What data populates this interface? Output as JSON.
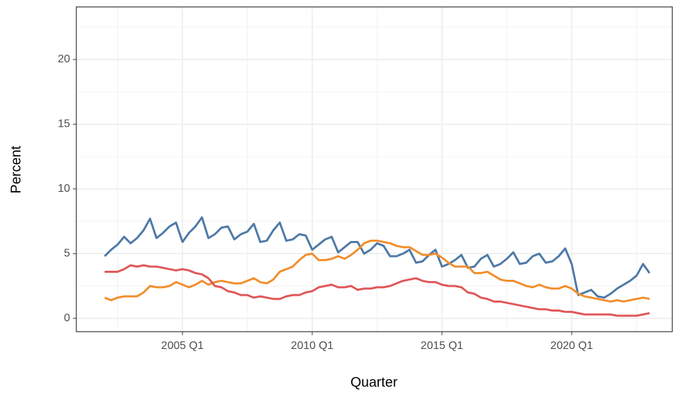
{
  "chart_data": {
    "type": "line",
    "x_label": "Quarter",
    "y_label": "Percent",
    "x": [
      "2002 Q1",
      "2002 Q2",
      "2002 Q3",
      "2002 Q4",
      "2003 Q1",
      "2003 Q2",
      "2003 Q3",
      "2003 Q4",
      "2004 Q1",
      "2004 Q2",
      "2004 Q3",
      "2004 Q4",
      "2005 Q1",
      "2005 Q2",
      "2005 Q3",
      "2005 Q4",
      "2006 Q1",
      "2006 Q2",
      "2006 Q3",
      "2006 Q4",
      "2007 Q1",
      "2007 Q2",
      "2007 Q3",
      "2007 Q4",
      "2008 Q1",
      "2008 Q2",
      "2008 Q3",
      "2008 Q4",
      "2009 Q1",
      "2009 Q2",
      "2009 Q3",
      "2009 Q4",
      "2010 Q1",
      "2010 Q2",
      "2010 Q3",
      "2010 Q4",
      "2011 Q1",
      "2011 Q2",
      "2011 Q3",
      "2011 Q4",
      "2012 Q1",
      "2012 Q2",
      "2012 Q3",
      "2012 Q4",
      "2013 Q1",
      "2013 Q2",
      "2013 Q3",
      "2013 Q4",
      "2014 Q1",
      "2014 Q2",
      "2014 Q3",
      "2014 Q4",
      "2015 Q1",
      "2015 Q2",
      "2015 Q3",
      "2015 Q4",
      "2016 Q1",
      "2016 Q2",
      "2016 Q3",
      "2016 Q4",
      "2017 Q1",
      "2017 Q2",
      "2017 Q3",
      "2017 Q4",
      "2018 Q1",
      "2018 Q2",
      "2018 Q3",
      "2018 Q4",
      "2019 Q1",
      "2019 Q2",
      "2019 Q3",
      "2019 Q4",
      "2020 Q1",
      "2020 Q2",
      "2020 Q3",
      "2020 Q4",
      "2021 Q1",
      "2021 Q2",
      "2021 Q3",
      "2021 Q4",
      "2022 Q1",
      "2022 Q2",
      "2022 Q3",
      "2022 Q4",
      "2023 Q1"
    ],
    "xticks": [
      "2005 Q1",
      "2010 Q1",
      "2015 Q1",
      "2020 Q1"
    ],
    "xminor": [
      "2002 Q3",
      "2007 Q3",
      "2012 Q3",
      "2017 Q3",
      "2022 Q3"
    ],
    "ylim": [
      -1.03,
      24.06
    ],
    "yticks": [
      0,
      5,
      10,
      15,
      20
    ],
    "yminor": [
      2.5,
      7.5,
      12.5,
      17.5,
      22.5
    ],
    "grid": true,
    "series": [
      {
        "color": "#4e79a7",
        "values": [
          4.8,
          5.3,
          5.7,
          6.3,
          5.8,
          6.2,
          6.8,
          7.7,
          6.2,
          6.6,
          7.1,
          7.4,
          5.9,
          6.6,
          7.1,
          7.8,
          6.2,
          6.5,
          7.0,
          7.1,
          6.1,
          6.5,
          6.7,
          7.3,
          5.9,
          6.0,
          6.8,
          7.4,
          6.0,
          6.1,
          6.5,
          6.4,
          5.3,
          5.7,
          6.1,
          6.3,
          5.1,
          5.5,
          5.9,
          5.9,
          5.0,
          5.3,
          5.8,
          5.6,
          4.8,
          4.8,
          5.0,
          5.3,
          4.3,
          4.4,
          4.9,
          5.3,
          4.0,
          4.2,
          4.5,
          4.9,
          3.9,
          4.0,
          4.6,
          4.9,
          4.0,
          4.2,
          4.6,
          5.1,
          4.2,
          4.3,
          4.8,
          5.0,
          4.3,
          4.4,
          4.8,
          5.4,
          4.2,
          1.8,
          2.0,
          2.2,
          1.7,
          1.6,
          1.9,
          2.3,
          2.6,
          2.9,
          3.3,
          4.2,
          3.5
        ]
      },
      {
        "color": "#f28e2b",
        "values": [
          1.6,
          1.4,
          1.6,
          1.7,
          1.7,
          1.7,
          2.0,
          2.5,
          2.4,
          2.4,
          2.5,
          2.8,
          2.6,
          2.4,
          2.6,
          2.9,
          2.6,
          2.8,
          2.9,
          2.8,
          2.7,
          2.7,
          2.9,
          3.1,
          2.8,
          2.7,
          3.0,
          3.6,
          3.8,
          4.0,
          4.5,
          4.9,
          5.0,
          4.5,
          4.5,
          4.6,
          4.8,
          4.6,
          4.9,
          5.3,
          5.8,
          6.0,
          6.0,
          5.9,
          5.8,
          5.6,
          5.5,
          5.5,
          5.2,
          4.9,
          4.9,
          5.0,
          4.7,
          4.3,
          4.0,
          4.0,
          4.0,
          3.5,
          3.5,
          3.6,
          3.3,
          3.0,
          2.9,
          2.9,
          2.7,
          2.5,
          2.4,
          2.6,
          2.4,
          2.3,
          2.3,
          2.5,
          2.3,
          1.9,
          1.7,
          1.6,
          1.5,
          1.4,
          1.3,
          1.4,
          1.3,
          1.4,
          1.5,
          1.6,
          1.5
        ]
      },
      {
        "color": "#e15759",
        "values": [
          3.6,
          3.6,
          3.6,
          3.8,
          4.1,
          4.0,
          4.1,
          4.0,
          4.0,
          3.9,
          3.8,
          3.7,
          3.8,
          3.7,
          3.5,
          3.4,
          3.1,
          2.5,
          2.4,
          2.1,
          2.0,
          1.8,
          1.8,
          1.6,
          1.7,
          1.6,
          1.5,
          1.5,
          1.7,
          1.8,
          1.8,
          2.0,
          2.1,
          2.4,
          2.5,
          2.6,
          2.4,
          2.4,
          2.5,
          2.2,
          2.3,
          2.3,
          2.4,
          2.4,
          2.5,
          2.7,
          2.9,
          3.0,
          3.1,
          2.9,
          2.8,
          2.8,
          2.6,
          2.5,
          2.5,
          2.4,
          2.0,
          1.9,
          1.6,
          1.5,
          1.3,
          1.3,
          1.2,
          1.1,
          1.0,
          0.9,
          0.8,
          0.7,
          0.7,
          0.6,
          0.6,
          0.5,
          0.5,
          0.4,
          0.3,
          0.3,
          0.3,
          0.3,
          0.3,
          0.2,
          0.2,
          0.2,
          0.2,
          0.3,
          0.4
        ]
      }
    ]
  }
}
